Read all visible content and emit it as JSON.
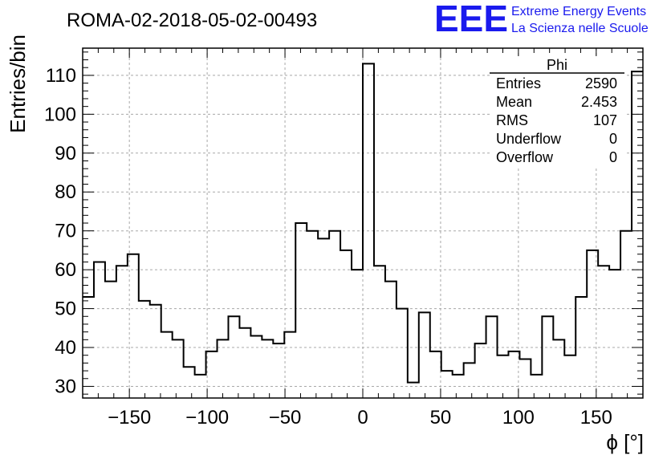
{
  "chart_data": {
    "type": "histogram",
    "title": "ROMA-02-2018-05-02-00493",
    "xlabel": "ϕ [°]",
    "ylabel": "Entries/bin",
    "xlim": [
      -180,
      180
    ],
    "ylim": [
      27,
      117
    ],
    "grid": true,
    "bin_width": 7.2,
    "x_ticks": [
      -150,
      -100,
      -50,
      0,
      50,
      100,
      150
    ],
    "x_tick_labels": [
      "−150",
      "−100",
      "−50",
      "0",
      "50",
      "100",
      "150"
    ],
    "y_ticks": [
      30,
      40,
      50,
      60,
      70,
      80,
      90,
      100,
      110
    ],
    "y_tick_labels": [
      "30",
      "40",
      "50",
      "60",
      "70",
      "80",
      "90",
      "100",
      "110"
    ],
    "series": [
      {
        "values": [
          53,
          62,
          57,
          61,
          64,
          52,
          51,
          44,
          42,
          35,
          33,
          39,
          42,
          48,
          45,
          43,
          42,
          41,
          44,
          72,
          70,
          68,
          70,
          65,
          60,
          113,
          61,
          57,
          50,
          31,
          49,
          39,
          34,
          33,
          36,
          41,
          48,
          38,
          39,
          37,
          33,
          48,
          42,
          38,
          53,
          65,
          61,
          60,
          70,
          111
        ],
        "color": "#000000"
      }
    ]
  },
  "stats_box": {
    "title": "Phi",
    "rows": [
      {
        "label": "Entries",
        "value": "2590"
      },
      {
        "label": "Mean",
        "value": "2.453"
      },
      {
        "label": "RMS",
        "value": "107"
      },
      {
        "label": "Underflow",
        "value": "0"
      },
      {
        "label": "Overflow",
        "value": "0"
      }
    ]
  },
  "logo": {
    "text": "EEE",
    "line1": "Extreme Energy Events",
    "line2": "La Scienza nelle Scuole",
    "color": "#1a1aee"
  }
}
